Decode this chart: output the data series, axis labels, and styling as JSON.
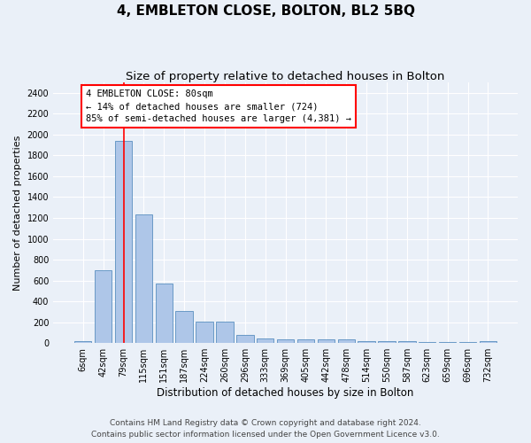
{
  "title": "4, EMBLETON CLOSE, BOLTON, BL2 5BQ",
  "subtitle": "Size of property relative to detached houses in Bolton",
  "xlabel": "Distribution of detached houses by size in Bolton",
  "ylabel": "Number of detached properties",
  "categories": [
    "6sqm",
    "42sqm",
    "79sqm",
    "115sqm",
    "151sqm",
    "187sqm",
    "224sqm",
    "260sqm",
    "296sqm",
    "333sqm",
    "369sqm",
    "405sqm",
    "442sqm",
    "478sqm",
    "514sqm",
    "550sqm",
    "587sqm",
    "623sqm",
    "659sqm",
    "696sqm",
    "732sqm"
  ],
  "values": [
    18,
    700,
    1940,
    1230,
    570,
    310,
    205,
    205,
    80,
    45,
    38,
    38,
    32,
    32,
    22,
    22,
    20,
    8,
    8,
    8,
    22
  ],
  "bar_color": "#aec6e8",
  "bar_edge_color": "#5a8fc0",
  "vline_x_index": 2,
  "vline_color": "red",
  "annotation_text": "4 EMBLETON CLOSE: 80sqm\n← 14% of detached houses are smaller (724)\n85% of semi-detached houses are larger (4,381) →",
  "annotation_box_color": "white",
  "annotation_box_edge_color": "red",
  "annotation_fontsize": 7.5,
  "title_fontsize": 11,
  "subtitle_fontsize": 9.5,
  "xlabel_fontsize": 8.5,
  "ylabel_fontsize": 8,
  "tick_fontsize": 7,
  "footer_line1": "Contains HM Land Registry data © Crown copyright and database right 2024.",
  "footer_line2": "Contains public sector information licensed under the Open Government Licence v3.0.",
  "footer_fontsize": 6.5,
  "ylim": [
    0,
    2500
  ],
  "yticks": [
    0,
    200,
    400,
    600,
    800,
    1000,
    1200,
    1400,
    1600,
    1800,
    2000,
    2200,
    2400
  ],
  "background_color": "#eaf0f8",
  "plot_bg_color": "#eaf0f8"
}
